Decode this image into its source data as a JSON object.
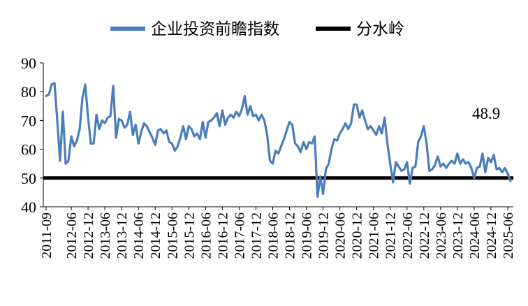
{
  "chart_data": {
    "type": "line",
    "legend": {
      "position": "top-center",
      "items": [
        {
          "label": "企业投资前瞻指数",
          "color": "#4a7ebb"
        },
        {
          "label": "分水岭",
          "color": "#000000"
        }
      ]
    },
    "y_axis": {
      "ylim": [
        40,
        90
      ],
      "ticks": [
        "40",
        "50",
        "60",
        "70",
        "80",
        "90"
      ]
    },
    "x_axis": {
      "start": "2011-09",
      "end": "2025-07",
      "tick_labels": [
        "2011-09",
        "2012-06",
        "2012-12",
        "2013-06",
        "2013-12",
        "2014-06",
        "2014-12",
        "2015-06",
        "2015-12",
        "2016-06",
        "2016-12",
        "2017-06",
        "2017-12",
        "2018-06",
        "2018-12",
        "2019-06",
        "2019-12",
        "2020-06",
        "2020-12",
        "2021-06",
        "2021-12",
        "2022-06",
        "2022-12",
        "2023-06",
        "2023-12",
        "2024-06",
        "2024-12",
        "2025-06"
      ]
    },
    "grid": false,
    "threshold": {
      "name": "分水岭",
      "value": 50,
      "color": "#000000"
    },
    "annotation": {
      "text": "48.9"
    },
    "series": [
      {
        "name": "企业投资前瞻指数",
        "color": "#4a7ebb",
        "points": [
          [
            "2011-09",
            78.5
          ],
          [
            "2011-10",
            79
          ],
          [
            "2011-11",
            82.5
          ],
          [
            "2011-12",
            83
          ],
          [
            "2012-01",
            70
          ],
          [
            "2012-02",
            56
          ],
          [
            "2012-03",
            73
          ],
          [
            "2012-04",
            55
          ],
          [
            "2012-05",
            56
          ],
          [
            "2012-06",
            64.5
          ],
          [
            "2012-07",
            61
          ],
          [
            "2012-08",
            63
          ],
          [
            "2012-09",
            67
          ],
          [
            "2012-10",
            78
          ],
          [
            "2012-11",
            82.5
          ],
          [
            "2012-12",
            71
          ],
          [
            "2013-01",
            62
          ],
          [
            "2013-02",
            62
          ],
          [
            "2013-03",
            72
          ],
          [
            "2013-04",
            67
          ],
          [
            "2013-05",
            70
          ],
          [
            "2013-06",
            69
          ],
          [
            "2013-07",
            71
          ],
          [
            "2013-08",
            71.5
          ],
          [
            "2013-09",
            82
          ],
          [
            "2013-10",
            64
          ],
          [
            "2013-11",
            70.5
          ],
          [
            "2013-12",
            70
          ],
          [
            "2014-01",
            67.5
          ],
          [
            "2014-02",
            68.5
          ],
          [
            "2014-03",
            73
          ],
          [
            "2014-04",
            65
          ],
          [
            "2014-05",
            68.5
          ],
          [
            "2014-06",
            62
          ],
          [
            "2014-07",
            66
          ],
          [
            "2014-08",
            69
          ],
          [
            "2014-09",
            68
          ],
          [
            "2014-10",
            66
          ],
          [
            "2014-11",
            64
          ],
          [
            "2014-12",
            61.5
          ],
          [
            "2015-01",
            66.5
          ],
          [
            "2015-02",
            67
          ],
          [
            "2015-03",
            65.5
          ],
          [
            "2015-04",
            66.5
          ],
          [
            "2015-05",
            62.5
          ],
          [
            "2015-06",
            62
          ],
          [
            "2015-07",
            59.5
          ],
          [
            "2015-08",
            61
          ],
          [
            "2015-09",
            64
          ],
          [
            "2015-10",
            68
          ],
          [
            "2015-11",
            63.5
          ],
          [
            "2015-12",
            68
          ],
          [
            "2016-01",
            67
          ],
          [
            "2016-02",
            64.5
          ],
          [
            "2016-03",
            65.5
          ],
          [
            "2016-04",
            63.5
          ],
          [
            "2016-05",
            69.5
          ],
          [
            "2016-06",
            64
          ],
          [
            "2016-07",
            69.5
          ],
          [
            "2016-08",
            70
          ],
          [
            "2016-09",
            71
          ],
          [
            "2016-10",
            72.5
          ],
          [
            "2016-11",
            68
          ],
          [
            "2016-12",
            73.5
          ],
          [
            "2017-01",
            68.5
          ],
          [
            "2017-02",
            71
          ],
          [
            "2017-03",
            72
          ],
          [
            "2017-04",
            71
          ],
          [
            "2017-05",
            73
          ],
          [
            "2017-06",
            71.5
          ],
          [
            "2017-07",
            74
          ],
          [
            "2017-08",
            78.5
          ],
          [
            "2017-09",
            72
          ],
          [
            "2017-10",
            75
          ],
          [
            "2017-11",
            71.5
          ],
          [
            "2017-12",
            72
          ],
          [
            "2018-01",
            70
          ],
          [
            "2018-02",
            72
          ],
          [
            "2018-03",
            70
          ],
          [
            "2018-04",
            65
          ],
          [
            "2018-05",
            56
          ],
          [
            "2018-06",
            55
          ],
          [
            "2018-07",
            59.5
          ],
          [
            "2018-08",
            58.5
          ],
          [
            "2018-09",
            61
          ],
          [
            "2018-10",
            63.5
          ],
          [
            "2018-11",
            66.5
          ],
          [
            "2018-12",
            69.5
          ],
          [
            "2019-01",
            68.5
          ],
          [
            "2019-02",
            62
          ],
          [
            "2019-03",
            61
          ],
          [
            "2019-04",
            59
          ],
          [
            "2019-05",
            62.5
          ],
          [
            "2019-06",
            60
          ],
          [
            "2019-07",
            62.5
          ],
          [
            "2019-08",
            62
          ],
          [
            "2019-09",
            64.5
          ],
          [
            "2019-10",
            43.5
          ],
          [
            "2019-11",
            50.5
          ],
          [
            "2019-12",
            44.5
          ],
          [
            "2020-01",
            53
          ],
          [
            "2020-02",
            55
          ],
          [
            "2020-03",
            60
          ],
          [
            "2020-04",
            63.5
          ],
          [
            "2020-05",
            63
          ],
          [
            "2020-06",
            65.5
          ],
          [
            "2020-07",
            67
          ],
          [
            "2020-08",
            69
          ],
          [
            "2020-09",
            67
          ],
          [
            "2020-10",
            69
          ],
          [
            "2020-11",
            75.5
          ],
          [
            "2020-12",
            75.5
          ],
          [
            "2021-01",
            71
          ],
          [
            "2021-02",
            73.5
          ],
          [
            "2021-03",
            70
          ],
          [
            "2021-04",
            67
          ],
          [
            "2021-05",
            68
          ],
          [
            "2021-06",
            66.5
          ],
          [
            "2021-07",
            65
          ],
          [
            "2021-08",
            68
          ],
          [
            "2021-09",
            65.5
          ],
          [
            "2021-10",
            71
          ],
          [
            "2021-11",
            62
          ],
          [
            "2021-12",
            55
          ],
          [
            "2022-01",
            48.5
          ],
          [
            "2022-02",
            55.5
          ],
          [
            "2022-03",
            54
          ],
          [
            "2022-04",
            52.5
          ],
          [
            "2022-05",
            53
          ],
          [
            "2022-06",
            55.5
          ],
          [
            "2022-07",
            48
          ],
          [
            "2022-08",
            53.5
          ],
          [
            "2022-09",
            54
          ],
          [
            "2022-10",
            62.5
          ],
          [
            "2022-11",
            64.5
          ],
          [
            "2022-12",
            68
          ],
          [
            "2023-01",
            62
          ],
          [
            "2023-02",
            52.5
          ],
          [
            "2023-03",
            53
          ],
          [
            "2023-04",
            54.5
          ],
          [
            "2023-05",
            57.5
          ],
          [
            "2023-06",
            54
          ],
          [
            "2023-07",
            55
          ],
          [
            "2023-08",
            53.5
          ],
          [
            "2023-09",
            55
          ],
          [
            "2023-10",
            56
          ],
          [
            "2023-11",
            55
          ],
          [
            "2023-12",
            58.5
          ],
          [
            "2024-01",
            55
          ],
          [
            "2024-02",
            56.5
          ],
          [
            "2024-03",
            55
          ],
          [
            "2024-04",
            55.5
          ],
          [
            "2024-05",
            53.5
          ],
          [
            "2024-06",
            50
          ],
          [
            "2024-07",
            53.5
          ],
          [
            "2024-08",
            54
          ],
          [
            "2024-09",
            58.5
          ],
          [
            "2024-10",
            52
          ],
          [
            "2024-11",
            57
          ],
          [
            "2024-12",
            55.5
          ],
          [
            "2025-01",
            58
          ],
          [
            "2025-02",
            53
          ],
          [
            "2025-03",
            53.5
          ],
          [
            "2025-04",
            52
          ],
          [
            "2025-05",
            53.5
          ],
          [
            "2025-06",
            51.5
          ],
          [
            "2025-07",
            48.9
          ]
        ]
      }
    ]
  }
}
